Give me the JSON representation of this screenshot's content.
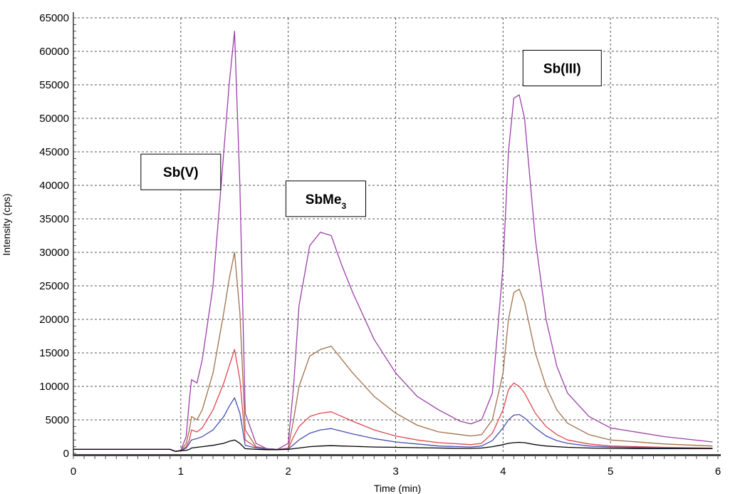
{
  "chart_data": {
    "type": "line",
    "xlabel": "Time (min)",
    "ylabel": "Intensity (cps)",
    "xlim": [
      0,
      6
    ],
    "ylim": [
      0,
      65000
    ],
    "x_ticks": [
      "0",
      "1",
      "2",
      "3",
      "4",
      "5",
      "6"
    ],
    "y_ticks": [
      "0",
      "5000",
      "10000",
      "15000",
      "20000",
      "25000",
      "30000",
      "35000",
      "40000",
      "45000",
      "50000",
      "55000",
      "60000",
      "65000"
    ],
    "grid": true,
    "annotations": [
      {
        "text": "Sb(V)",
        "x": 1.0,
        "y": 42000
      },
      {
        "text": "SbMe",
        "sub": "3",
        "x": 2.35,
        "y": 38000
      },
      {
        "text": "Sb(III)",
        "x": 4.55,
        "y": 57500
      }
    ],
    "x": [
      0,
      0.5,
      0.9,
      0.95,
      1.0,
      1.05,
      1.08,
      1.1,
      1.15,
      1.2,
      1.3,
      1.4,
      1.45,
      1.5,
      1.55,
      1.6,
      1.7,
      1.8,
      1.9,
      2.0,
      2.05,
      2.1,
      2.2,
      2.3,
      2.4,
      2.5,
      2.6,
      2.8,
      3.0,
      3.2,
      3.4,
      3.6,
      3.7,
      3.8,
      3.9,
      4.0,
      4.05,
      4.1,
      4.15,
      4.2,
      4.3,
      4.4,
      4.5,
      4.6,
      4.8,
      5.0,
      5.5,
      5.95
    ],
    "series": [
      {
        "color": "#9b3fa8",
        "values": [
          600,
          600,
          600,
          300,
          400,
          2500,
          8000,
          11000,
          10500,
          14000,
          25000,
          45000,
          55000,
          63000,
          40000,
          6000,
          1500,
          700,
          600,
          1500,
          10000,
          22000,
          31000,
          33000,
          32500,
          28000,
          24000,
          17000,
          12000,
          8500,
          6500,
          4800,
          4400,
          5000,
          9000,
          28000,
          45000,
          53000,
          53500,
          50000,
          32000,
          20000,
          13000,
          9000,
          5500,
          3800,
          2500,
          1700
        ]
      },
      {
        "color": "#a0704a",
        "values": [
          600,
          600,
          600,
          300,
          400,
          1500,
          3500,
          5500,
          5000,
          6500,
          12000,
          21000,
          26000,
          30000,
          21000,
          3500,
          1000,
          700,
          600,
          800,
          5000,
          10000,
          14500,
          15500,
          16000,
          14000,
          12000,
          8500,
          6000,
          4200,
          3200,
          2800,
          2600,
          2800,
          5000,
          12000,
          20000,
          24000,
          24500,
          22500,
          15000,
          10000,
          6500,
          4500,
          2800,
          2000,
          1400,
          1100
        ]
      },
      {
        "color": "#e0464f",
        "values": [
          600,
          600,
          600,
          300,
          400,
          1000,
          2000,
          3500,
          3200,
          3800,
          6500,
          10500,
          13000,
          15500,
          11000,
          2000,
          900,
          700,
          600,
          700,
          2500,
          4000,
          5500,
          6000,
          6200,
          5500,
          4800,
          3500,
          2600,
          2000,
          1600,
          1400,
          1300,
          1500,
          3000,
          6500,
          9500,
          10500,
          10000,
          9000,
          6000,
          4000,
          2800,
          2000,
          1400,
          1100,
          900,
          800
        ]
      },
      {
        "color": "#4450b0",
        "values": [
          600,
          600,
          600,
          300,
          400,
          800,
          1500,
          2000,
          2200,
          2500,
          3500,
          5500,
          7000,
          8300,
          6000,
          1200,
          800,
          650,
          600,
          650,
          1300,
          2000,
          3000,
          3500,
          3700,
          3300,
          2900,
          2200,
          1700,
          1400,
          1100,
          1000,
          950,
          1100,
          1900,
          3800,
          5000,
          5700,
          5800,
          5300,
          3800,
          2600,
          1900,
          1500,
          1100,
          950,
          800,
          700
        ]
      },
      {
        "color": "#000000",
        "values": [
          600,
          600,
          600,
          300,
          400,
          450,
          600,
          800,
          900,
          1000,
          1200,
          1500,
          1800,
          2000,
          1500,
          700,
          600,
          550,
          550,
          600,
          700,
          800,
          1000,
          1100,
          1150,
          1100,
          1050,
          950,
          900,
          850,
          800,
          750,
          750,
          800,
          1000,
          1300,
          1500,
          1600,
          1650,
          1600,
          1300,
          1100,
          1000,
          900,
          800,
          750,
          700,
          700
        ]
      }
    ]
  }
}
